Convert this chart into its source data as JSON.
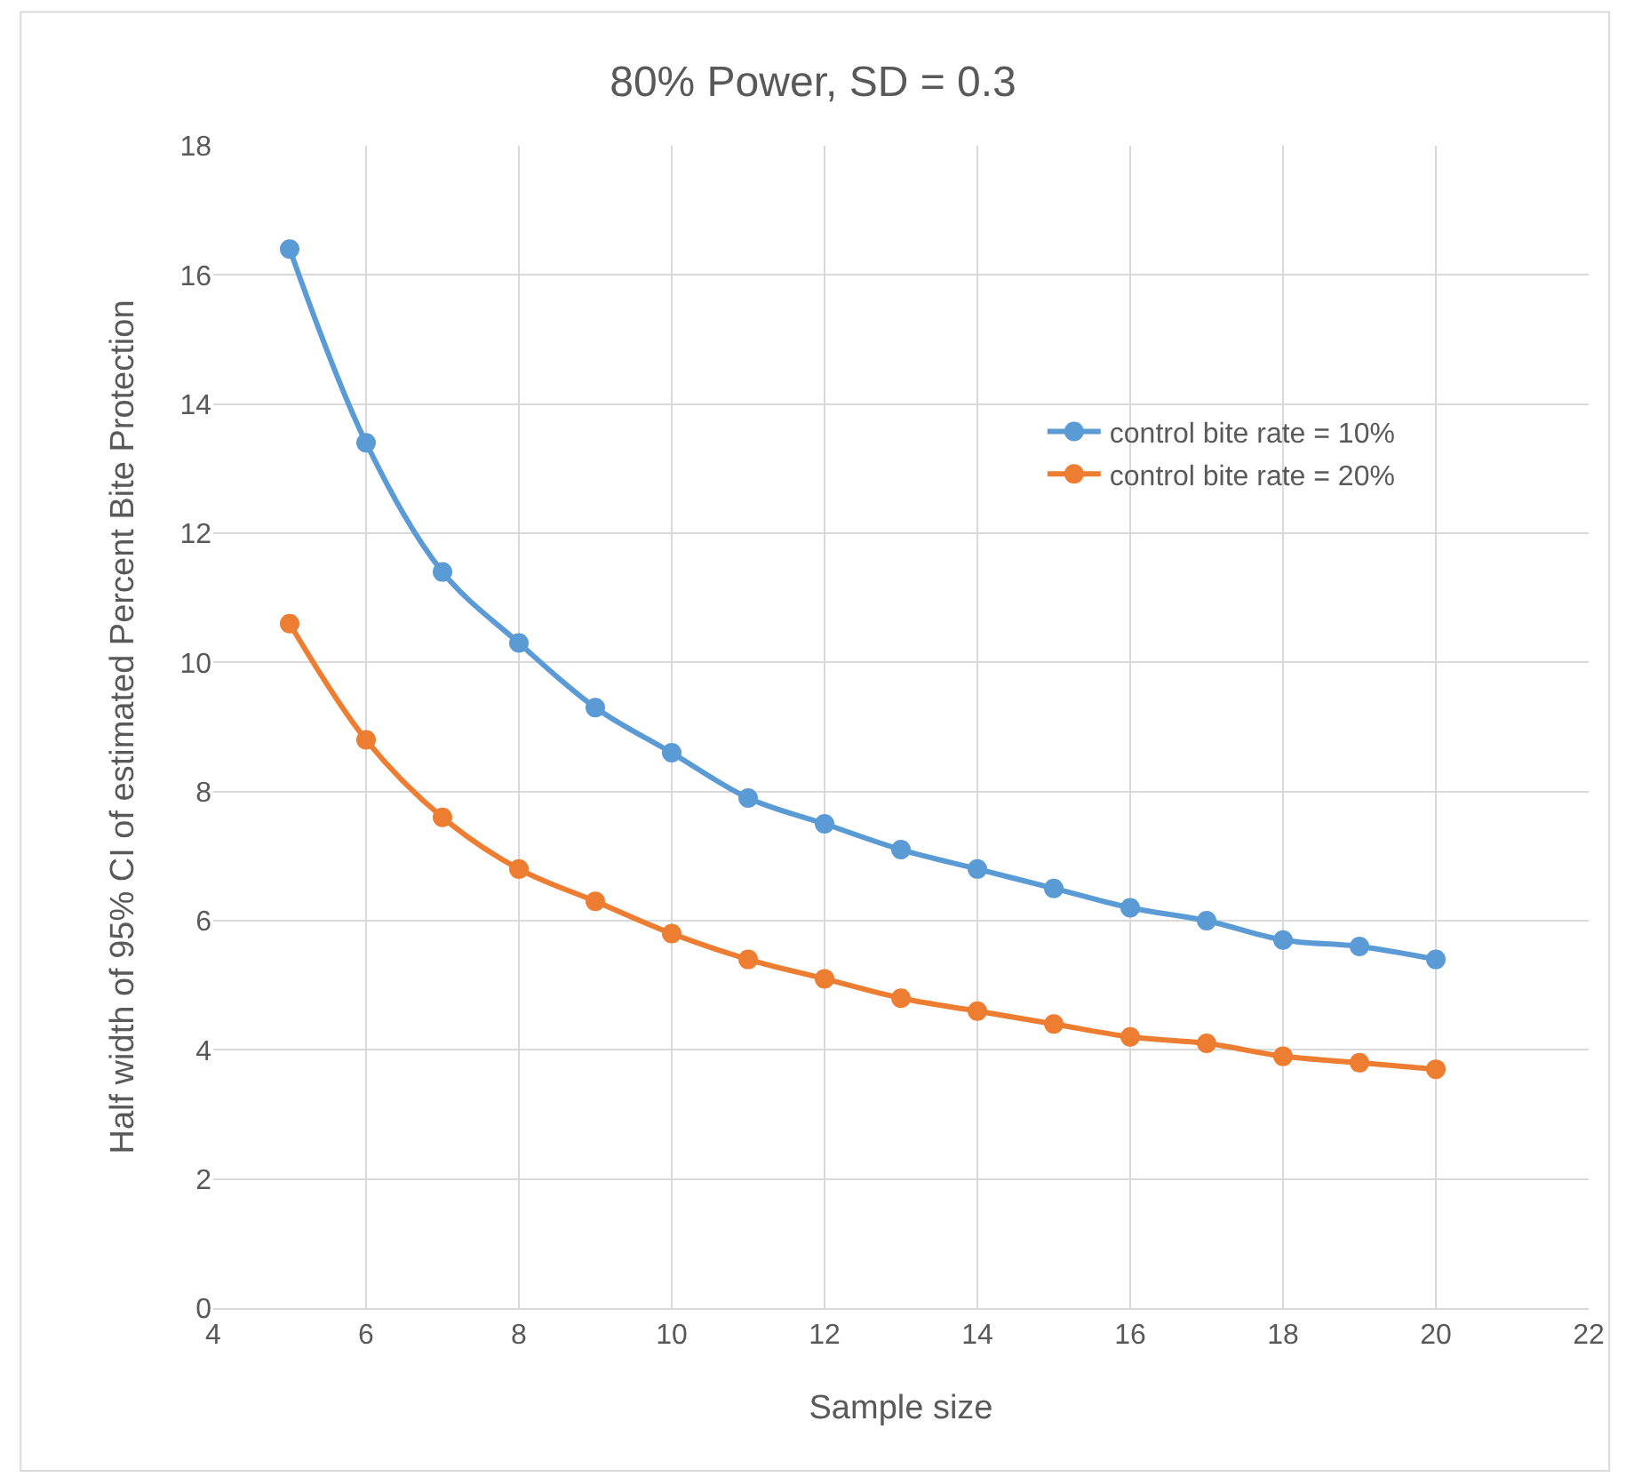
{
  "chart_data": {
    "type": "line",
    "title": "80% Power, SD = 0.3",
    "xlabel": "Sample size",
    "ylabel": "Half width of 95% CI of estimated Percent Bite Protection",
    "x": [
      5,
      6,
      7,
      8,
      9,
      10,
      11,
      12,
      13,
      14,
      15,
      16,
      17,
      18,
      19,
      20
    ],
    "series": [
      {
        "name": "control bite rate = 10%",
        "color": "#5b9bd5",
        "values": [
          16.4,
          13.4,
          11.4,
          10.3,
          9.3,
          8.6,
          7.9,
          7.5,
          7.1,
          6.8,
          6.5,
          6.2,
          6.0,
          5.7,
          5.6,
          5.4
        ]
      },
      {
        "name": "control bite rate = 20%",
        "color": "#ed7d31",
        "values": [
          10.6,
          8.8,
          7.6,
          6.8,
          6.3,
          5.8,
          5.4,
          5.1,
          4.8,
          4.6,
          4.4,
          4.2,
          4.1,
          3.9,
          3.8,
          3.7
        ]
      }
    ],
    "xlim": [
      4,
      22
    ],
    "xticks": [
      4,
      6,
      8,
      10,
      12,
      14,
      16,
      18,
      20,
      22
    ],
    "ylim": [
      0,
      18
    ],
    "yticks": [
      0,
      2,
      4,
      6,
      8,
      10,
      12,
      14,
      16,
      18
    ],
    "grid": true,
    "legend": "right",
    "marker": "circle",
    "line_style": "solid"
  }
}
